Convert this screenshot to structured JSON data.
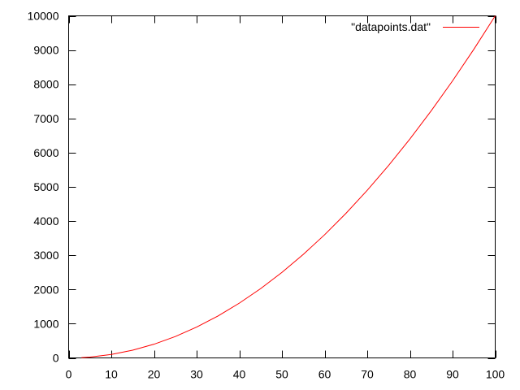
{
  "chart_data": {
    "type": "line",
    "title": "",
    "xlabel": "",
    "ylabel": "",
    "xlim": [
      0,
      100
    ],
    "ylim": [
      0,
      10000
    ],
    "x_ticks": [
      0,
      10,
      20,
      30,
      40,
      50,
      60,
      70,
      80,
      90,
      100
    ],
    "y_ticks": [
      0,
      1000,
      2000,
      3000,
      4000,
      5000,
      6000,
      7000,
      8000,
      9000,
      10000
    ],
    "grid": false,
    "legend_position": "top-right",
    "series": [
      {
        "name": "\"datapoints.dat\"",
        "color": "#ff0000",
        "x": [
          3,
          5,
          10,
          15,
          20,
          25,
          30,
          35,
          40,
          45,
          50,
          55,
          60,
          65,
          70,
          75,
          80,
          85,
          90,
          95,
          100
        ],
        "y": [
          9,
          25,
          100,
          225,
          400,
          625,
          900,
          1225,
          1600,
          2025,
          2500,
          3025,
          3600,
          4225,
          4900,
          5625,
          6400,
          7225,
          8100,
          9025,
          10000
        ]
      }
    ]
  }
}
